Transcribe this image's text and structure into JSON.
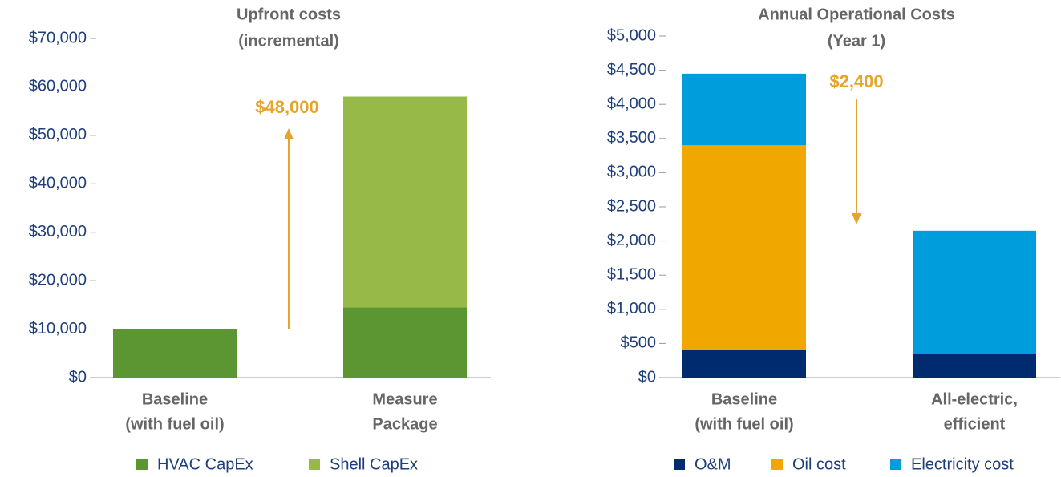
{
  "chart_data": [
    {
      "type": "stacked_bar",
      "title": [
        "Upfront costs",
        "(incremental)"
      ],
      "categories": [
        [
          "Baseline",
          "(with fuel oil)"
        ],
        [
          "Measure",
          "Package"
        ]
      ],
      "series": [
        {
          "name": "HVAC CapEx",
          "color": "#5c9632",
          "values": [
            10000,
            14500
          ]
        },
        {
          "name": "Shell CapEx",
          "color": "#97b947",
          "values": [
            0,
            43500
          ]
        }
      ],
      "ylim": [
        0,
        70000
      ],
      "yticks": [
        {
          "value": 0,
          "label": "$0"
        },
        {
          "value": 10000,
          "label": "$10,000"
        },
        {
          "value": 20000,
          "label": "$20,000"
        },
        {
          "value": 30000,
          "label": "$30,000"
        },
        {
          "value": 40000,
          "label": "$40,000"
        },
        {
          "value": 50000,
          "label": "$50,000"
        },
        {
          "value": 60000,
          "label": "$60,000"
        },
        {
          "value": 70000,
          "label": "$70,000"
        }
      ],
      "annotation": "$48,000",
      "annotation_color": "#e3a52b"
    },
    {
      "type": "stacked_bar",
      "title": [
        "Annual Operational Costs",
        "(Year 1)"
      ],
      "categories": [
        [
          "Baseline",
          "(with fuel oil)"
        ],
        [
          "All-electric,",
          "efficient"
        ]
      ],
      "series": [
        {
          "name": "O&M",
          "color": "#002b6e",
          "values": [
            400,
            350
          ]
        },
        {
          "name": "Oil cost",
          "color": "#f0a800",
          "values": [
            3000,
            0
          ]
        },
        {
          "name": "Electricity cost",
          "color": "#009ddc",
          "values": [
            1050,
            1800
          ]
        }
      ],
      "ylim": [
        0,
        5000
      ],
      "yticks": [
        {
          "value": 0,
          "label": "$0"
        },
        {
          "value": 500,
          "label": "$500"
        },
        {
          "value": 1000,
          "label": "$1,000"
        },
        {
          "value": 1500,
          "label": "$1,500"
        },
        {
          "value": 2000,
          "label": "$2,000"
        },
        {
          "value": 2500,
          "label": "$2,500"
        },
        {
          "value": 3000,
          "label": "$3,000"
        },
        {
          "value": 3500,
          "label": "$3,500"
        },
        {
          "value": 4000,
          "label": "$4,000"
        },
        {
          "value": 4500,
          "label": "$4,500"
        },
        {
          "value": 5000,
          "label": "$5,000"
        }
      ],
      "annotation": "$2,400",
      "annotation_color": "#e3a52b"
    }
  ]
}
